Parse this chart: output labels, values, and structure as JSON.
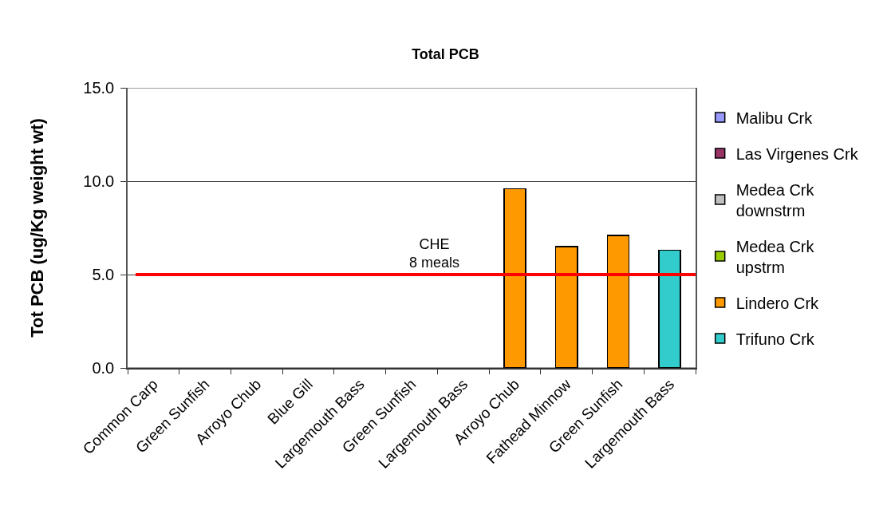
{
  "chart_data": {
    "type": "bar",
    "title": "Total PCB",
    "ylabel": "Tot PCB (ug/Kg weight wt)",
    "categories": [
      "Common Carp",
      "Green Sunfish",
      "Arroyo Chub",
      "Blue Gill",
      "Largemouth Bass",
      "Green Sunfish",
      "Largemouth Bass",
      "Arroyo Chub",
      "Fathead Minnow",
      "Green Sunfish",
      "Largemouth Bass"
    ],
    "series": [
      {
        "name": "Malibu Crk",
        "color": "#9999ff",
        "values": [
          null,
          null,
          null,
          null,
          null,
          null,
          null,
          null,
          null,
          null,
          null
        ]
      },
      {
        "name": "Las Virgenes Crk",
        "color": "#993366",
        "values": [
          null,
          null,
          null,
          null,
          null,
          null,
          null,
          null,
          null,
          null,
          null
        ]
      },
      {
        "name": "Medea Crk downstrm",
        "color": "#c0c0c0",
        "values": [
          null,
          null,
          null,
          null,
          null,
          null,
          null,
          null,
          null,
          null,
          null
        ]
      },
      {
        "name": "Medea Crk upstrm",
        "color": "#99cc00",
        "values": [
          null,
          null,
          null,
          null,
          null,
          null,
          null,
          null,
          null,
          null,
          null
        ]
      },
      {
        "name": "Lindero Crk",
        "color": "#ff9900",
        "values": [
          null,
          null,
          null,
          null,
          null,
          null,
          null,
          9.6,
          6.5,
          7.1,
          null
        ]
      },
      {
        "name": "Trifuno Crk",
        "color": "#33cccc",
        "values": [
          null,
          null,
          null,
          null,
          null,
          null,
          null,
          null,
          null,
          null,
          6.3
        ]
      }
    ],
    "stacked": true,
    "ylim": [
      0,
      15
    ],
    "yticks": [
      {
        "value": 0,
        "label": "0.0"
      },
      {
        "value": 5,
        "label": "5.0"
      },
      {
        "value": 10,
        "label": "10.0"
      },
      {
        "value": 15,
        "label": "15.0"
      }
    ],
    "grid": "y",
    "legend": "right",
    "ref_lines": [
      {
        "axis": "y",
        "value": 5,
        "label": "CHE\n8 meals",
        "color": "#ff0000"
      }
    ]
  }
}
